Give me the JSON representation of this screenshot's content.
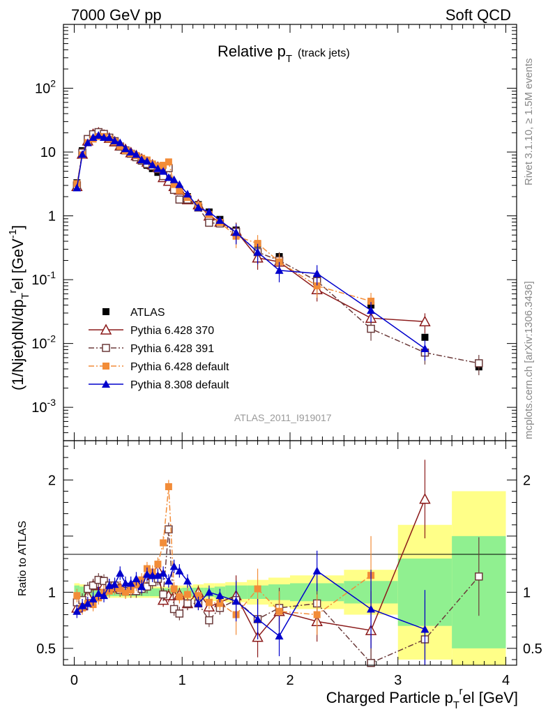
{
  "header": {
    "left": "7000 GeV pp",
    "right": "Soft QCD"
  },
  "side_text": {
    "rivet": "Rivet 3.1.10, ≥ 1.5M events",
    "mcplots": "mcplots.cern.ch [arXiv:1306.3436]"
  },
  "chart_data": {
    "type": "line",
    "title_main": "Relative p",
    "title_sub": "T",
    "title_extra": "(track jets)",
    "analysis_label": "ATLAS_2011_I919017",
    "xlabel": "Charged Particle p",
    "xlabel_sub": "T",
    "xlabel_sup": "r",
    "xlabel_rest": "el [GeV]",
    "ylabel": "(1/Njet)dN/dp",
    "ylabel_sub": "T",
    "ylabel_sup": "r",
    "ylabel_rest": "el [GeV",
    "ylabel_exp": "-1",
    "ylabel_end": "]",
    "ratio_ylabel": "Ratio to ATLAS",
    "xlim": [
      -0.1,
      4.1
    ],
    "ylim_main": [
      0.0003,
      1000
    ],
    "yscale_main": "log",
    "ylim_ratio": [
      0.35,
      2.35
    ],
    "x_ticks": [
      "0",
      "1",
      "2",
      "3",
      "4"
    ],
    "y_ticks_main": [
      {
        "base": "10",
        "exp": "-3"
      },
      {
        "base": "10",
        "exp": "-2"
      },
      {
        "base": "10",
        "exp": "-1"
      },
      {
        "base": "1",
        "exp": ""
      },
      {
        "base": "10",
        "exp": ""
      },
      {
        "base": "10",
        "exp": "2"
      }
    ],
    "y_ticks_ratio": [
      "0.5",
      "1",
      "2"
    ],
    "legend_position": "bottom-left of upper panel",
    "x": [
      0.025,
      0.075,
      0.125,
      0.175,
      0.225,
      0.275,
      0.325,
      0.375,
      0.425,
      0.475,
      0.525,
      0.575,
      0.625,
      0.675,
      0.725,
      0.775,
      0.825,
      0.875,
      0.925,
      0.975,
      1.05,
      1.15,
      1.25,
      1.35,
      1.5,
      1.7,
      1.9,
      2.25,
      2.75,
      3.25,
      3.75
    ],
    "series": [
      {
        "name": "ATLAS",
        "color": "#000000",
        "marker": "square-filled",
        "values": [
          3.3,
          10.5,
          15.5,
          18.0,
          18.5,
          17.5,
          15.8,
          14.0,
          12.0,
          10.5,
          9.3,
          8.2,
          7.2,
          6.2,
          5.5,
          4.8,
          4.3,
          3.6,
          3.0,
          2.6,
          2.0,
          1.5,
          1.15,
          0.88,
          0.6,
          0.36,
          0.23,
          0.105,
          0.04,
          0.0125,
          0.0043
        ]
      },
      {
        "name": "Pythia 6.428 370",
        "color": "#8B1A1A",
        "marker": "triangle-open",
        "line": "solid",
        "values": [
          2.9,
          9.3,
          15.0,
          19.0,
          20.0,
          18.5,
          16.5,
          14.5,
          12.5,
          11.0,
          9.8,
          8.8,
          7.8,
          7.0,
          6.3,
          5.8,
          4.0,
          3.5,
          2.9,
          2.55,
          1.8,
          1.5,
          1.0,
          0.8,
          0.58,
          0.22,
          0.19,
          0.07,
          0.025,
          0.022,
          null
        ]
      },
      {
        "name": "Pythia 6.428 391",
        "color": "#6B3A3A",
        "marker": "square-open",
        "line": "dash-dot",
        "values": [
          3.0,
          9.8,
          16.0,
          19.0,
          20.5,
          19.2,
          16.8,
          14.8,
          12.2,
          10.6,
          9.4,
          8.3,
          7.4,
          6.5,
          6.0,
          5.4,
          4.2,
          5.6,
          2.55,
          1.8,
          1.8,
          1.35,
          0.78,
          0.76,
          0.56,
          0.27,
          0.2,
          0.095,
          0.017,
          0.0072,
          0.0049
        ]
      },
      {
        "name": "Pythia 6.428 default",
        "color": "#F28C38",
        "marker": "square-filled",
        "line": "dash-dot",
        "values": [
          3.2,
          9.0,
          14.0,
          16.0,
          17.5,
          17.5,
          16.0,
          14.5,
          12.3,
          10.5,
          9.5,
          8.8,
          8.0,
          7.5,
          6.5,
          6.0,
          6.2,
          7.0,
          3.1,
          2.5,
          1.95,
          1.45,
          1.05,
          0.79,
          0.48,
          0.37,
          0.19,
          0.08,
          0.046,
          null,
          null
        ]
      },
      {
        "name": "Pythia 8.308 default",
        "color": "#0000CC",
        "marker": "triangle-filled",
        "line": "solid",
        "values": [
          2.75,
          9.2,
          14.0,
          17.0,
          18.3,
          17.0,
          16.8,
          15.0,
          14.0,
          11.3,
          10.0,
          9.2,
          7.6,
          7.2,
          6.3,
          5.5,
          5.0,
          4.0,
          3.7,
          3.1,
          2.2,
          1.35,
          1.15,
          0.85,
          0.55,
          0.27,
          0.14,
          0.125,
          0.033,
          0.0083,
          null
        ]
      }
    ],
    "ratio_series": [
      {
        "name": "Pythia 6.428 370",
        "values": [
          0.86,
          0.88,
          0.97,
          1.06,
          1.08,
          1.06,
          1.04,
          1.04,
          1.04,
          1.05,
          1.05,
          1.07,
          1.08,
          1.12,
          1.15,
          1.2,
          0.93,
          0.97,
          0.97,
          0.98,
          0.9,
          1.0,
          0.87,
          0.91,
          0.97,
          0.6,
          0.83,
          0.74,
          0.66,
          1.83,
          null
        ]
      },
      {
        "name": "Pythia 6.428 391",
        "values": [
          0.91,
          0.93,
          1.03,
          1.06,
          1.11,
          1.1,
          1.06,
          1.06,
          1.02,
          1.01,
          1.01,
          1.01,
          1.03,
          1.05,
          1.09,
          1.12,
          0.98,
          1.56,
          0.85,
          0.81,
          0.9,
          0.9,
          0.75,
          0.86,
          0.93,
          0.76,
          0.86,
          0.9,
          0.37,
          0.58,
          1.14
        ]
      },
      {
        "name": "Pythia 6.428 default",
        "values": [
          0.97,
          0.86,
          0.9,
          0.89,
          0.95,
          1.0,
          1.01,
          1.04,
          1.03,
          1.0,
          1.02,
          1.07,
          1.11,
          1.21,
          1.18,
          1.25,
          1.44,
          1.94,
          1.03,
          0.96,
          0.98,
          0.97,
          0.91,
          0.9,
          0.8,
          1.03,
          0.83,
          0.8,
          1.15,
          null,
          null
        ]
      },
      {
        "name": "Pythia 8.308 default",
        "values": [
          0.83,
          0.88,
          0.9,
          0.94,
          0.99,
          0.97,
          1.06,
          1.07,
          1.17,
          1.08,
          1.08,
          1.12,
          1.05,
          1.16,
          1.15,
          1.15,
          1.17,
          1.1,
          1.23,
          1.19,
          1.1,
          0.9,
          1.0,
          0.97,
          0.92,
          0.76,
          0.61,
          1.19,
          0.85,
          0.67,
          null
        ]
      }
    ],
    "ratio_bands": {
      "x_edges": [
        0.0,
        0.05,
        0.1,
        0.15,
        0.2,
        0.25,
        0.3,
        0.35,
        0.4,
        0.45,
        0.5,
        0.55,
        0.6,
        0.65,
        0.7,
        0.75,
        0.8,
        0.85,
        0.9,
        0.95,
        1.0,
        1.1,
        1.2,
        1.3,
        1.4,
        1.6,
        1.8,
        2.0,
        2.5,
        3.0,
        3.5,
        4.0
      ],
      "inner_halfwidth": [
        0.06,
        0.05,
        0.04,
        0.035,
        0.035,
        0.035,
        0.035,
        0.035,
        0.035,
        0.035,
        0.035,
        0.035,
        0.035,
        0.035,
        0.035,
        0.035,
        0.035,
        0.035,
        0.035,
        0.035,
        0.04,
        0.04,
        0.04,
        0.05,
        0.06,
        0.06,
        0.07,
        0.08,
        0.1,
        0.3,
        0.5
      ],
      "outer_halfwidth": [
        0.08,
        0.07,
        0.06,
        0.05,
        0.05,
        0.05,
        0.05,
        0.05,
        0.05,
        0.05,
        0.05,
        0.05,
        0.05,
        0.05,
        0.05,
        0.05,
        0.05,
        0.05,
        0.05,
        0.06,
        0.06,
        0.07,
        0.08,
        0.08,
        0.09,
        0.11,
        0.13,
        0.15,
        0.2,
        0.6,
        0.9
      ]
    }
  }
}
